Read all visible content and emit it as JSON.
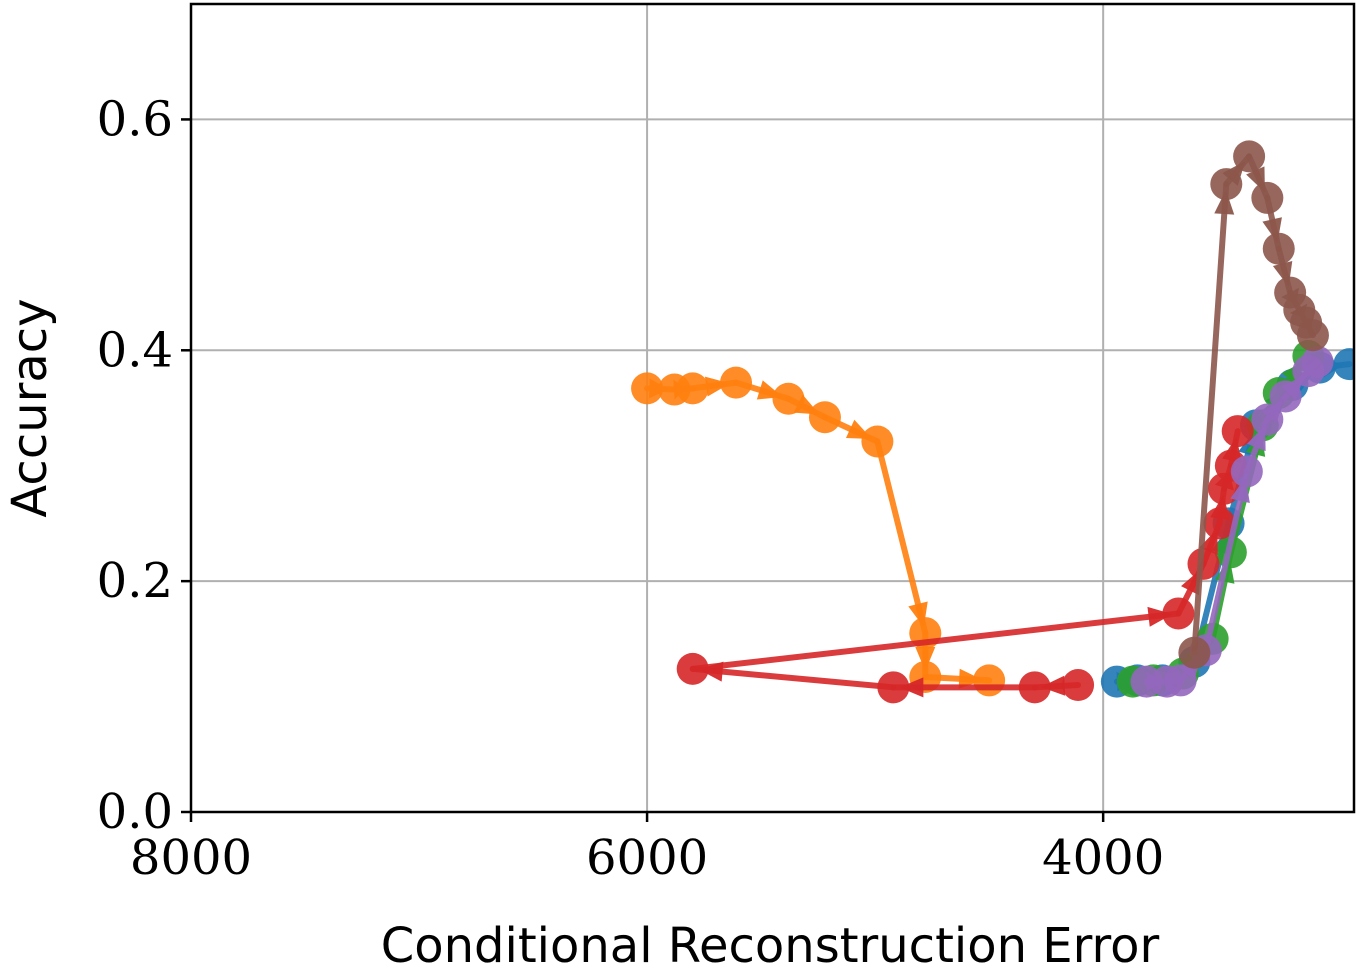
{
  "chart_data": {
    "type": "line",
    "xlabel": "Conditional Reconstruction Error",
    "ylabel": "Accuracy",
    "xlim": [
      8000,
      2900
    ],
    "ylim": [
      0.0,
      0.7
    ],
    "x_ticks": [
      8000,
      6000,
      4000
    ],
    "x_tick_labels": [
      "8000",
      "6000",
      "4000"
    ],
    "y_ticks": [
      0.0,
      0.2,
      0.4,
      0.6
    ],
    "y_tick_labels": [
      "0.0",
      "0.2",
      "0.4",
      "0.6"
    ],
    "grid": true,
    "x_inverted": true,
    "markers": "circle",
    "arrows_between_points": true,
    "series": [
      {
        "color": "#1f77b4",
        "points": [
          [
            3940,
            0.113
          ],
          [
            3850,
            0.114
          ],
          [
            3740,
            0.114
          ],
          [
            3600,
            0.13
          ],
          [
            3450,
            0.25
          ],
          [
            3330,
            0.335
          ],
          [
            3170,
            0.37
          ],
          [
            3050,
            0.385
          ],
          [
            2920,
            0.388
          ]
        ]
      },
      {
        "color": "#2ca02c",
        "points": [
          [
            3870,
            0.113
          ],
          [
            3780,
            0.114
          ],
          [
            3650,
            0.12
          ],
          [
            3520,
            0.15
          ],
          [
            3440,
            0.225
          ],
          [
            3300,
            0.335
          ],
          [
            3230,
            0.363
          ],
          [
            3100,
            0.395
          ]
        ]
      },
      {
        "color": "#ff7f0e",
        "points": [
          [
            6000,
            0.367
          ],
          [
            5880,
            0.366
          ],
          [
            5800,
            0.367
          ],
          [
            5610,
            0.372
          ],
          [
            5380,
            0.358
          ],
          [
            5220,
            0.342
          ],
          [
            4990,
            0.321
          ],
          [
            4780,
            0.155
          ],
          [
            4780,
            0.117
          ],
          [
            4500,
            0.114
          ]
        ]
      },
      {
        "color": "#d62728",
        "points": [
          [
            4110,
            0.11
          ],
          [
            4300,
            0.108
          ],
          [
            4920,
            0.108
          ],
          [
            5800,
            0.124
          ],
          [
            3670,
            0.172
          ],
          [
            3560,
            0.215
          ],
          [
            3490,
            0.25
          ],
          [
            3470,
            0.28
          ],
          [
            3440,
            0.3
          ],
          [
            3410,
            0.33
          ]
        ]
      },
      {
        "color": "#9467bd",
        "points": [
          [
            3810,
            0.113
          ],
          [
            3720,
            0.113
          ],
          [
            3660,
            0.114
          ],
          [
            3550,
            0.14
          ],
          [
            3370,
            0.295
          ],
          [
            3280,
            0.34
          ],
          [
            3200,
            0.36
          ],
          [
            3100,
            0.382
          ],
          [
            3060,
            0.39
          ]
        ]
      },
      {
        "color": "#8c564b",
        "points": [
          [
            3600,
            0.138
          ],
          [
            3460,
            0.544
          ],
          [
            3360,
            0.568
          ],
          [
            3280,
            0.532
          ],
          [
            3230,
            0.488
          ],
          [
            3180,
            0.45
          ],
          [
            3140,
            0.435
          ],
          [
            3110,
            0.424
          ],
          [
            3080,
            0.413
          ]
        ]
      }
    ]
  }
}
